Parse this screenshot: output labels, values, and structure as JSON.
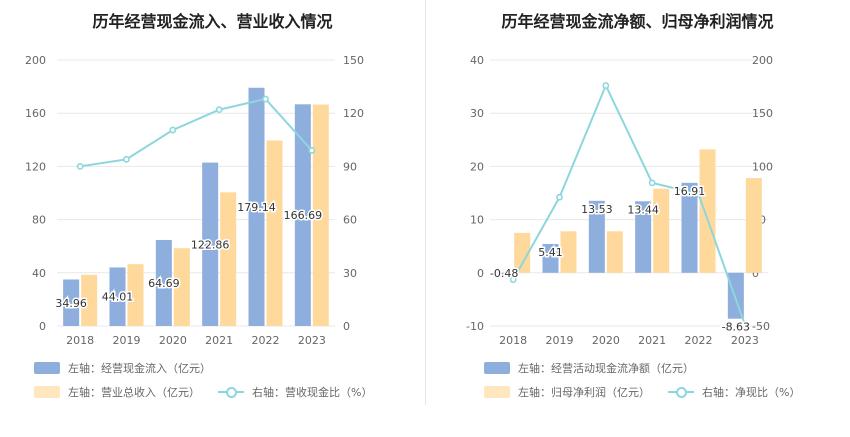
{
  "charts": [
    {
      "title": "历年经营现金流入、营业收入情况",
      "chart_data": {
        "type": "bar",
        "categories": [
          "2018",
          "2019",
          "2020",
          "2021",
          "2022",
          "2023"
        ],
        "series": [
          {
            "name": "左轴：经营现金流入（亿元）",
            "axis": "left",
            "kind": "bar",
            "color": "#8eaedd",
            "values": [
              34.96,
              44.01,
              64.69,
              122.86,
              179.14,
              166.69
            ],
            "labels": [
              "34.96",
              "44.01",
              "64.69",
              "122.86",
              "179.14",
              "166.69"
            ]
          },
          {
            "name": "左轴：营业总收入（亿元）",
            "axis": "left",
            "kind": "bar",
            "color": "#ffd99b",
            "values": [
              38.5,
              46.5,
              58.5,
              100.5,
              139.5,
              166.5
            ]
          },
          {
            "name": "右轴：营收现金比（%）",
            "axis": "right",
            "kind": "line",
            "color": "#8dd7dc",
            "values": [
              90.0,
              94.0,
              110.5,
              122.0,
              128.0,
              99.0
            ]
          }
        ],
        "left_axis": {
          "min": 0,
          "max": 200,
          "ticks": [
            0,
            40,
            80,
            120,
            160,
            200
          ]
        },
        "right_axis": {
          "min": 0,
          "max": 150,
          "ticks": [
            0,
            30,
            60,
            90,
            120,
            150
          ]
        },
        "grid": true,
        "legend_position": "bottom-left"
      }
    },
    {
      "title": "历年经营现金流净额、归母净利润情况",
      "chart_data": {
        "type": "bar",
        "categories": [
          "2018",
          "2019",
          "2020",
          "2021",
          "2022",
          "2023"
        ],
        "series": [
          {
            "name": "左轴：经营活动现金流净额（亿元）",
            "axis": "left",
            "kind": "bar",
            "color": "#8eaedd",
            "values": [
              -0.48,
              5.41,
              13.53,
              13.44,
              16.91,
              -8.63
            ],
            "labels": [
              "-0.48",
              "5.41",
              "13.53",
              "13.44",
              "16.91",
              "-8.63"
            ]
          },
          {
            "name": "左轴：归母净利润（亿元）",
            "axis": "left",
            "kind": "bar",
            "color": "#ffd99b",
            "values": [
              7.5,
              7.8,
              7.8,
              15.8,
              23.2,
              17.8
            ]
          },
          {
            "name": "右轴：净现比（%）",
            "axis": "right",
            "kind": "line",
            "color": "#8dd7dc",
            "values": [
              -6.5,
              71.0,
              176.0,
              84.5,
              74.0,
              -48.5
            ]
          }
        ],
        "left_axis": {
          "min": -10,
          "max": 40,
          "ticks": [
            -10,
            0,
            10,
            20,
            30,
            40
          ]
        },
        "right_axis": {
          "min": -50,
          "max": 200,
          "ticks": [
            -50,
            0,
            50,
            100,
            150,
            200
          ]
        },
        "grid": true,
        "legend_position": "bottom-left"
      }
    }
  ]
}
